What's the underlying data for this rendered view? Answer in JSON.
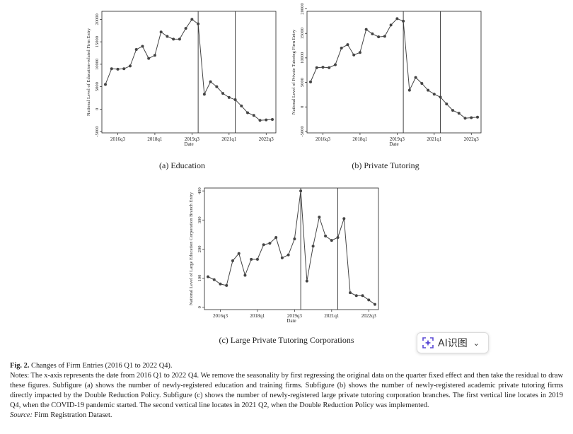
{
  "chart_data": [
    {
      "type": "line",
      "id": "education",
      "caption": "(a)  Education",
      "ylabel": "National Level of Education-related Firm Entry",
      "xlabel": "Date",
      "x_tick_labels": [
        "2016q3",
        "2018q1",
        "2019q3",
        "2021q1",
        "2022q3"
      ],
      "x_tick_index": [
        2,
        8,
        14,
        20,
        26
      ],
      "y_tick_labels": [
        "-5000",
        "0",
        "5000",
        "10000",
        "15000",
        "20000"
      ],
      "y_ticks": [
        -5000,
        0,
        5000,
        10000,
        15000,
        20000
      ],
      "ylim": [
        -5300,
        21800
      ],
      "vlines_index": [
        15,
        21
      ],
      "values": [
        5500,
        9000,
        8900,
        9000,
        9600,
        13300,
        14000,
        11300,
        12000,
        17200,
        16200,
        15600,
        15600,
        18000,
        20000,
        19000,
        3300,
        6100,
        5000,
        3500,
        2600,
        2100,
        700,
        -800,
        -1400,
        -2500,
        -2400,
        -2300
      ]
    },
    {
      "type": "line",
      "id": "private-tutoring",
      "caption": "(b)  Private Tutoring",
      "ylabel": "National Level of Private Tutoring Firm Entry",
      "xlabel": "Date",
      "x_tick_labels": [
        "2016q3",
        "2018q1",
        "2019q3",
        "2021q1",
        "2022q3"
      ],
      "x_tick_index": [
        2,
        8,
        14,
        20,
        26
      ],
      "y_tick_labels": [
        "-5000",
        "0",
        "5000",
        "10000",
        "15000",
        "20000"
      ],
      "y_ticks": [
        -5000,
        0,
        5000,
        10000,
        15000,
        20000
      ],
      "ylim": [
        -5300,
        19500
      ],
      "vlines_index": [
        15,
        21
      ],
      "values": [
        5100,
        8000,
        8100,
        8000,
        8600,
        12000,
        12700,
        10600,
        11100,
        15800,
        14900,
        14300,
        14400,
        16700,
        18000,
        17500,
        3400,
        6000,
        4800,
        3400,
        2600,
        2000,
        600,
        -700,
        -1300,
        -2300,
        -2200,
        -2100
      ]
    },
    {
      "type": "line",
      "id": "large-corporations",
      "caption": "(c)  Large Private Tutoring Corporations",
      "ylabel": "National Level of Large Education Corporation Branch Entry",
      "xlabel": "Date",
      "x_tick_labels": [
        "2016q3",
        "2018q1",
        "2019q3",
        "2021q1",
        "2022q3"
      ],
      "x_tick_index": [
        2,
        8,
        14,
        20,
        26
      ],
      "y_tick_labels": [
        "0",
        "100",
        "200",
        "300",
        "400"
      ],
      "y_ticks": [
        0,
        100,
        200,
        300,
        400
      ],
      "ylim": [
        -8,
        410
      ],
      "vlines_index": [
        15,
        21
      ],
      "values": [
        105,
        95,
        80,
        75,
        160,
        185,
        110,
        165,
        165,
        215,
        220,
        240,
        170,
        180,
        235,
        400,
        90,
        210,
        310,
        245,
        230,
        240,
        305,
        50,
        40,
        40,
        25,
        10
      ]
    }
  ],
  "ai_button": {
    "label": "AI识图",
    "chevron": "⌄"
  },
  "notes": {
    "fig_label": "Fig. 2.",
    "fig_title": "Changes of Firm Entries (2016 Q1 to 2022 Q4).",
    "notes_text": "Notes: The x-axis represents the date from 2016 Q1 to 2022 Q4. We remove the seasonality by first regressing the original data on the quarter fixed effect and then take the residual to draw these figures. Subfigure (a) shows the number of newly-registered education and training firms. Subfigure (b) shows the number of newly-registered academic private tutoring firms directly impacted by the Double Reduction Policy. Subfigure (c) shows the number of newly-registered large private tutoring corporation branches. The first vertical line locates in 2019 Q4, when the COVID-19 pandemic started. The second vertical line locates in 2021 Q2, when the Double Reduction Policy was implemented.",
    "source_label": "Source:",
    "source_text": "Firm Registration Dataset."
  }
}
